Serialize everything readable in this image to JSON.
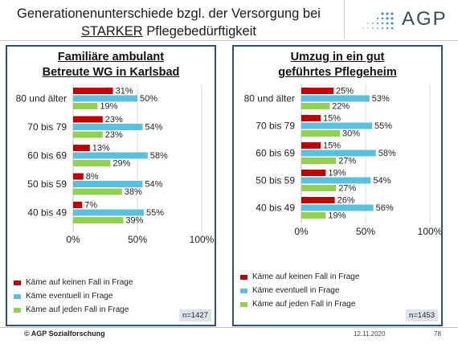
{
  "header": {
    "title_line1": "Generationenunterschiede bzgl. der Versorgung bei",
    "title_keyword": "STARKER",
    "title_line2_rest": " Pflegebedürftigkeit",
    "logo_text": "AGP"
  },
  "footer": {
    "copyright": "© AGP Sozialforschung",
    "date": "12.11.2020",
    "page": "78"
  },
  "colors": {
    "series1": "#c00000",
    "series2": "#5bc0de",
    "series3": "#92d050",
    "frame": "#2f4f7f"
  },
  "chart_data": [
    {
      "type": "bar",
      "orientation": "horizontal",
      "title_line1": "Familiäre ambulant",
      "title_line2": "Betreute WG in Karlsbad",
      "categories": [
        "80 und älter",
        "70 bis 79",
        "60 bis 69",
        "50 bis 59",
        "40 bis 49"
      ],
      "series": [
        {
          "name": "Käme auf keinen Fall in Frage",
          "values": [
            31,
            23,
            13,
            8,
            7
          ],
          "labels": [
            "31%",
            "23%",
            "13%",
            "8%",
            "7%"
          ]
        },
        {
          "name": "Käme eventuell in Frage",
          "values": [
            50,
            54,
            58,
            54,
            55
          ],
          "labels": [
            "50%",
            "54%",
            "58%",
            "54%",
            "55%"
          ]
        },
        {
          "name": "Käme auf jeden Fall in Frage",
          "values": [
            19,
            23,
            29,
            38,
            39
          ],
          "labels": [
            "19%",
            "23%",
            "29%",
            "38%",
            "39%"
          ]
        }
      ],
      "xlim": [
        0,
        100
      ],
      "xticks": [
        "0%",
        "50%",
        "100%"
      ],
      "n_label": "n=1427"
    },
    {
      "type": "bar",
      "orientation": "horizontal",
      "title_line1": "Umzug in ein gut",
      "title_line2": "geführtes Pflegeheim",
      "categories": [
        "80 und älter",
        "70 bis 79",
        "60 bis 69",
        "50 bis 59",
        "40 bis 49"
      ],
      "series": [
        {
          "name": "Käme auf keinen Fall in Frage",
          "values": [
            25,
            15,
            15,
            19,
            26
          ],
          "labels": [
            "25%",
            "15%",
            "15%",
            "19%",
            "26%"
          ]
        },
        {
          "name": "Käme eventuell in Frage",
          "values": [
            53,
            55,
            58,
            54,
            56
          ],
          "labels": [
            "53%",
            "55%",
            "58%",
            "54%",
            "56%"
          ]
        },
        {
          "name": "Käme auf jeden Fall in Frage",
          "values": [
            22,
            30,
            27,
            27,
            19
          ],
          "labels": [
            "22%",
            "30%",
            "27%",
            "27%",
            "19%"
          ]
        }
      ],
      "xlim": [
        0,
        100
      ],
      "xticks": [
        "0%",
        "50%",
        "100%"
      ],
      "n_label": "n=1453"
    }
  ]
}
